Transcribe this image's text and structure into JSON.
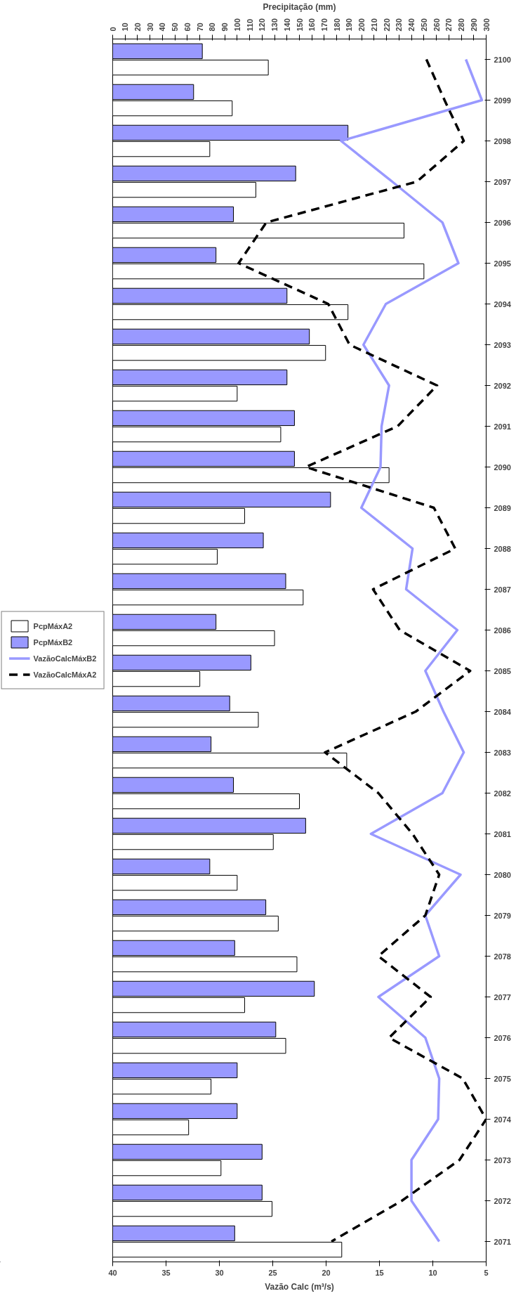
{
  "chart_data": {
    "type": "bar",
    "orientation": "horizontal",
    "categories": [
      "2100",
      "2099",
      "2098",
      "2097",
      "2096",
      "2095",
      "2094",
      "2093",
      "2092",
      "2091",
      "2090",
      "2089",
      "2088",
      "2087",
      "2086",
      "2085",
      "2084",
      "2083",
      "2082",
      "2081",
      "2080",
      "2079",
      "2078",
      "2077",
      "2076",
      "2075",
      "2074",
      "2073",
      "2072",
      "2071"
    ],
    "series": [
      {
        "name": "PcpMáxA2",
        "axis": "x2",
        "color": "#ffffff",
        "values": [
          125,
          96,
          78,
          115,
          234,
          250,
          189,
          171,
          100,
          135,
          222,
          106,
          84,
          153,
          130,
          70,
          117,
          188,
          150,
          129,
          100,
          133,
          148,
          106,
          139,
          79,
          61,
          87,
          128,
          184
        ]
      },
      {
        "name": "PcpMáxB2",
        "axis": "x2",
        "color": "#9999ff",
        "values": [
          72,
          65,
          189,
          147,
          97,
          83,
          140,
          158,
          140,
          146,
          146,
          175,
          121,
          139,
          83,
          111,
          94,
          79,
          97,
          155,
          78,
          123,
          98,
          162,
          131,
          100,
          100,
          120,
          120,
          98
        ]
      },
      {
        "name": "VazãoCalcMáxB2",
        "type": "line",
        "color": "#9999ff",
        "line_style": "solid",
        "values": [
          6.9,
          5.4,
          18.6,
          13.8,
          9.1,
          7.6,
          14.4,
          16.5,
          14.1,
          14.8,
          14.9,
          16.7,
          11.9,
          12.5,
          7.7,
          10.7,
          9.0,
          7.1,
          9.1,
          15.8,
          7.4,
          10.7,
          9.4,
          15.1,
          10.7,
          9.4,
          9.5,
          12.0,
          12.0,
          9.4
        ]
      },
      {
        "name": "VazãoCalcMáxA2",
        "type": "line",
        "color": "#000000",
        "line_style": "dashed",
        "values": [
          10.6,
          8.9,
          7.1,
          11.5,
          25.6,
          28.2,
          19.8,
          17.8,
          9.6,
          13.3,
          21.9,
          9.9,
          7.9,
          15.6,
          13.1,
          6.5,
          11.6,
          20.1,
          15.1,
          11.9,
          9.4,
          10.7,
          15.1,
          10.2,
          14.1,
          7.2,
          5.0,
          7.5,
          12.9,
          19.5
        ]
      }
    ],
    "xlabel": "Vazão Calc (m³/s)",
    "x2label": "Precipitação (mm)",
    "xlim": [
      40,
      5
    ],
    "xticks": [
      40,
      35,
      30,
      25,
      20,
      15,
      10,
      5
    ],
    "x2lim": [
      0,
      300
    ],
    "x2ticks": [
      0,
      10,
      20,
      30,
      40,
      50,
      60,
      70,
      80,
      90,
      100,
      110,
      120,
      130,
      140,
      150,
      160,
      170,
      180,
      190,
      200,
      210,
      220,
      230,
      240,
      250,
      260,
      270,
      280,
      290,
      300
    ],
    "legend": "left"
  }
}
